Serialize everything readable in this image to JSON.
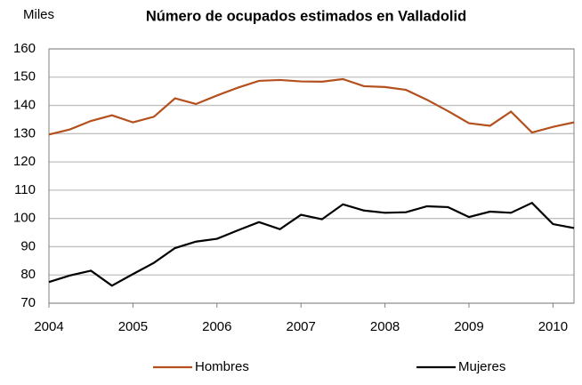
{
  "chart_data": {
    "type": "line",
    "title": "Número de ocupados estimados en  Valladolid",
    "y_label": "Miles",
    "x": [
      2004,
      2004.25,
      2004.5,
      2004.75,
      2005,
      2005.25,
      2005.5,
      2005.75,
      2006,
      2006.25,
      2006.5,
      2006.75,
      2007,
      2007.25,
      2007.5,
      2007.75,
      2008,
      2008.25,
      2008.5,
      2008.75,
      2009,
      2009.25,
      2009.5,
      2009.75,
      2010,
      2010.25
    ],
    "series": [
      {
        "name": "Hombres",
        "color": "#b4501e",
        "values": [
          129.7,
          131.5,
          134.5,
          136.5,
          134,
          136,
          142.5,
          140.5,
          143.5,
          146.3,
          148.7,
          149,
          148.5,
          148.4,
          149.3,
          146.8,
          146.5,
          145.5,
          142,
          138,
          133.7,
          132.8,
          137.8,
          130.4,
          132.4,
          134
        ]
      },
      {
        "name": "Mujeres",
        "color": "#000000",
        "values": [
          77.5,
          79.8,
          81.5,
          76.2,
          80.3,
          84.3,
          89.5,
          91.8,
          92.8,
          95.8,
          98.7,
          96.2,
          101.3,
          99.7,
          105,
          102.8,
          102,
          102.2,
          104.3,
          104,
          100.5,
          102.4,
          102,
          105.5,
          98,
          96.6
        ]
      }
    ],
    "xlim": [
      2004,
      2010.25
    ],
    "xticks": [
      2004,
      2005,
      2006,
      2007,
      2008,
      2009,
      2010
    ],
    "ylim": [
      70,
      160
    ],
    "yticks": [
      70,
      80,
      90,
      100,
      110,
      120,
      130,
      140,
      150,
      160
    ],
    "grid": true,
    "legend": "bottom"
  }
}
